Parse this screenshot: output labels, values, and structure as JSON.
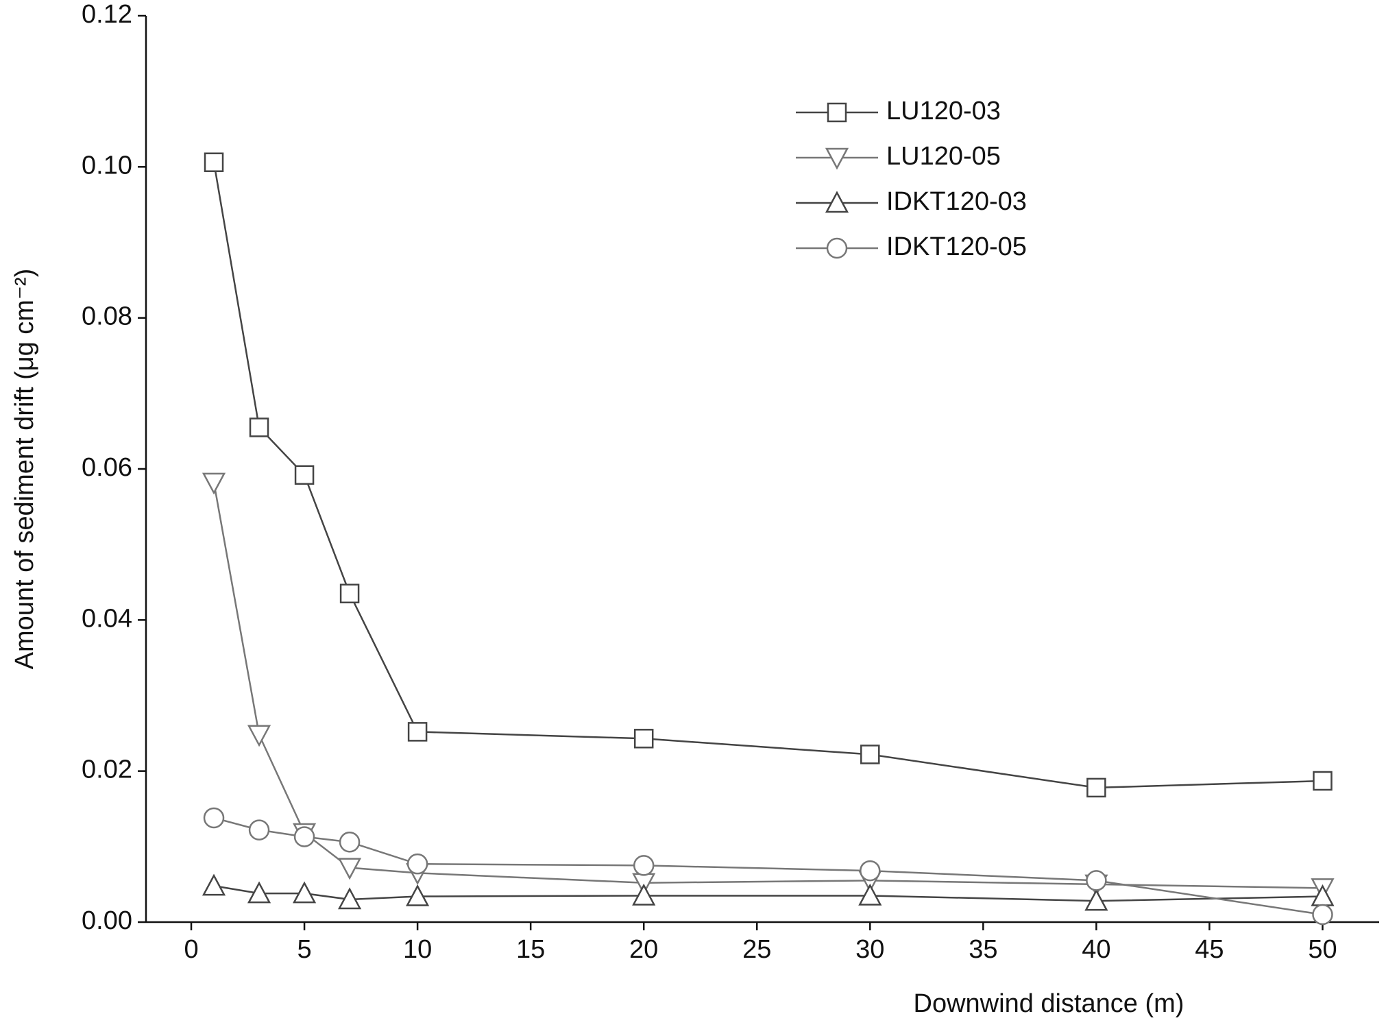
{
  "chart_data": {
    "type": "line",
    "xlabel": "Downwind distance (m)",
    "ylabel": "Amount of sediment drift (μg cm⁻²)",
    "x": [
      1,
      3,
      5,
      7,
      10,
      20,
      30,
      40,
      50
    ],
    "series": [
      {
        "name": "LU120-03",
        "color": "#444444",
        "marker": "square",
        "values": [
          0.1006,
          0.0655,
          0.0592,
          0.0435,
          0.0252,
          0.0243,
          0.0222,
          0.0178,
          0.0187
        ]
      },
      {
        "name": "LU120-05",
        "color": "#777777",
        "marker": "triangle-down",
        "values": [
          0.0582,
          0.0248,
          0.0118,
          0.0072,
          0.0065,
          0.0052,
          0.0055,
          0.005,
          0.0045
        ]
      },
      {
        "name": "IDKT120-03",
        "color": "#444444",
        "marker": "triangle-up",
        "values": [
          0.0048,
          0.0038,
          0.0038,
          0.003,
          0.0034,
          0.0035,
          0.0035,
          0.0028,
          0.0034
        ]
      },
      {
        "name": "IDKT120-05",
        "color": "#777777",
        "marker": "circle",
        "values": [
          0.0138,
          0.0122,
          0.0113,
          0.0106,
          0.0077,
          0.0075,
          0.0068,
          0.0055,
          0.001
        ]
      }
    ],
    "xlim": [
      -2,
      52.5
    ],
    "ylim": [
      0,
      0.12
    ],
    "xticks": [
      0,
      5,
      10,
      15,
      20,
      25,
      30,
      35,
      40,
      45,
      50
    ],
    "yticks": [
      {
        "value": 0,
        "label": "0.00"
      },
      {
        "value": 0.02,
        "label": "0.02"
      },
      {
        "value": 0.04,
        "label": "0.04"
      },
      {
        "value": 0.06,
        "label": "0.06"
      },
      {
        "value": 0.08,
        "label": "0.08"
      },
      {
        "value": 0.1,
        "label": "0.10"
      },
      {
        "value": 0.12,
        "label": "0.12"
      }
    ],
    "legend": "upper right",
    "grid": false
  }
}
